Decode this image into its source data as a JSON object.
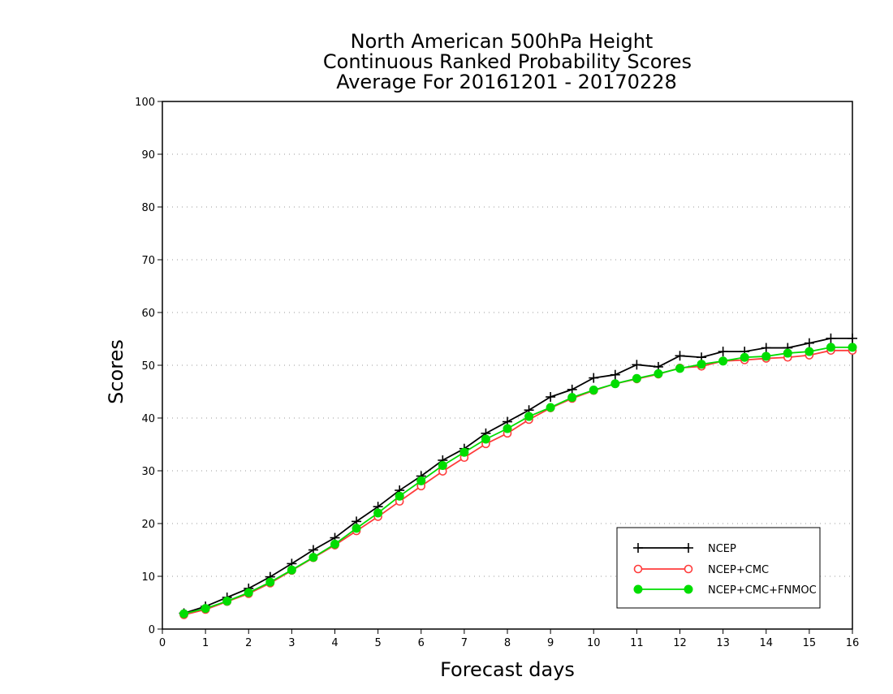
{
  "chart_data": {
    "type": "line",
    "title_lines": [
      "North American 500hPa Height",
      "Continuous Ranked Probability Scores",
      "Average For 20161201 - 20170228"
    ],
    "xlabel": "Forecast days",
    "ylabel": "Scores",
    "xlim": [
      0,
      16
    ],
    "ylim": [
      0,
      100
    ],
    "xticks": [
      0,
      1,
      2,
      3,
      4,
      5,
      6,
      7,
      8,
      9,
      10,
      11,
      12,
      13,
      14,
      15,
      16
    ],
    "xtick_labels": [
      "0",
      "1",
      "2",
      "3",
      "4",
      "5",
      "6",
      "7",
      "8",
      "9",
      "10",
      "11",
      "12",
      "13",
      "14",
      "15",
      "16"
    ],
    "yticks": [
      0,
      10,
      20,
      30,
      40,
      50,
      60,
      70,
      80,
      90,
      100
    ],
    "ytick_labels": [
      "0",
      "10",
      "20",
      "30",
      "40",
      "50",
      "60",
      "70",
      "80",
      "90",
      "100"
    ],
    "grid": "horizontal dotted",
    "legend_position": "bottom-right",
    "x": [
      0.5,
      1,
      1.5,
      2,
      2.5,
      3,
      3.5,
      4,
      4.5,
      5,
      5.5,
      6,
      6.5,
      7,
      7.5,
      8,
      8.5,
      9,
      9.5,
      10,
      10.5,
      11,
      11.5,
      12,
      12.5,
      13,
      13.5,
      14,
      14.5,
      15,
      15.5,
      16
    ],
    "series": [
      {
        "name": "NCEP",
        "color": "#000000",
        "marker": "plus",
        "values": [
          3.0,
          4.3,
          6.0,
          7.7,
          9.9,
          12.4,
          15.0,
          17.3,
          20.4,
          23.2,
          26.3,
          29.0,
          32.0,
          34.2,
          37.1,
          39.3,
          41.5,
          44.0,
          45.4,
          47.6,
          48.2,
          50.1,
          49.7,
          51.8,
          51.5,
          52.6,
          52.6,
          53.3,
          53.3,
          54.2,
          55.1,
          55.1
        ]
      },
      {
        "name": "NCEP+CMC",
        "color": "#ff3b3b",
        "marker": "open-circle",
        "values": [
          2.7,
          3.7,
          5.2,
          6.7,
          8.7,
          11.1,
          13.5,
          15.9,
          18.6,
          21.3,
          24.2,
          27.1,
          29.9,
          32.5,
          35.1,
          37.1,
          39.7,
          41.9,
          43.7,
          45.2,
          46.5,
          47.4,
          48.3,
          49.5,
          49.8,
          50.8,
          51.0,
          51.3,
          51.5,
          51.9,
          52.8,
          52.8
        ]
      },
      {
        "name": "NCEP+CMC+FNMOC",
        "color": "#00dd00",
        "marker": "filled-circle",
        "values": [
          2.9,
          3.9,
          5.3,
          6.9,
          8.9,
          11.2,
          13.6,
          16.1,
          19.1,
          22.0,
          25.2,
          28.1,
          31.0,
          33.5,
          36.0,
          38.0,
          40.3,
          42.0,
          43.9,
          45.3,
          46.5,
          47.5,
          48.4,
          49.4,
          50.2,
          50.8,
          51.5,
          51.7,
          52.3,
          52.6,
          53.4,
          53.4
        ]
      }
    ]
  }
}
